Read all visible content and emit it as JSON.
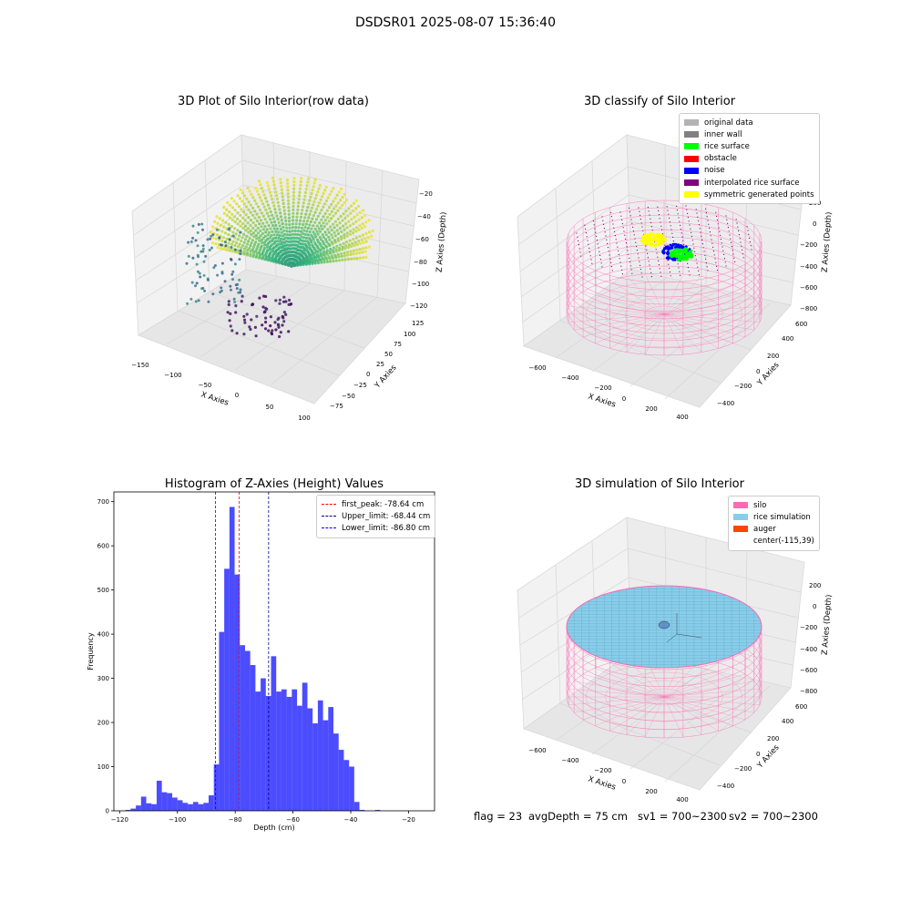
{
  "figure": {
    "suptitle": "DSDSR01 2025-08-07 15:36:40"
  },
  "panel1": {
    "title": "3D Plot of Silo Interior(row data)",
    "xlabel": "X Axies",
    "ylabel": "Y Axies",
    "zlabel": "Z Axies (Depth)",
    "x_ticks": [
      "−150",
      "−100",
      "−50",
      "0",
      "50",
      "100"
    ],
    "y_ticks": [
      "−75",
      "−50",
      "−25",
      "0",
      "25",
      "50",
      "75",
      "100",
      "125"
    ],
    "z_ticks": [
      "−120",
      "−100",
      "−80",
      "−60",
      "−40",
      "−20"
    ],
    "colormap": [
      "#440154",
      "#31688e",
      "#35b779",
      "#fde725"
    ]
  },
  "panel2": {
    "title": "3D classify of Silo Interior",
    "xlabel": "X Axies",
    "ylabel": "Y Axies",
    "zlabel": "Z Axies (Depth)",
    "x_ticks": [
      "−600",
      "−400",
      "−200",
      "0",
      "200",
      "400"
    ],
    "y_ticks": [
      "−400",
      "−200",
      "0",
      "200",
      "400",
      "600"
    ],
    "z_ticks": [
      "−800",
      "−600",
      "−400",
      "−200",
      "0",
      "200"
    ],
    "legend": [
      {
        "label": "original data",
        "color": "#b3b3b3"
      },
      {
        "label": "inner wall",
        "color": "#808080"
      },
      {
        "label": "rice surface",
        "color": "#00ff00"
      },
      {
        "label": "obstacle",
        "color": "#ff0000"
      },
      {
        "label": "noise",
        "color": "#0000ff"
      },
      {
        "label": "interpolated rice surface",
        "color": "#800080"
      },
      {
        "label": "symmetric generated points",
        "color": "#ffff00"
      }
    ],
    "wall_color": "#ff69b4"
  },
  "panel4": {
    "title": "3D simulation of Silo Interior",
    "xlabel": "X Axies",
    "ylabel": "Y Axies",
    "zlabel": "Z Axies (Depth)",
    "x_ticks": [
      "−600",
      "−400",
      "−200",
      "0",
      "200",
      "400"
    ],
    "y_ticks": [
      "−400",
      "−200",
      "0",
      "200",
      "400",
      "600"
    ],
    "z_ticks": [
      "−800",
      "−600",
      "−400",
      "−200",
      "0",
      "200"
    ],
    "legend": [
      {
        "label": "silo",
        "color": "#ff69b4"
      },
      {
        "label": "rice simulation",
        "color": "#87ceeb"
      },
      {
        "label": "auger",
        "color": "#ff4500"
      },
      {
        "label": "center(-115,39)",
        "color": ""
      }
    ]
  },
  "footer": {
    "flag": "flag = 23",
    "avg": "avgDepth = 75 cm",
    "sv1": "sv1 = 700~2300",
    "sv2": "sv2 = 700~2300"
  },
  "chart_data": [
    {
      "type": "bar",
      "title": "Histogram of Z-Axies (Height) Values",
      "xlabel": "Depth (cm)",
      "ylabel": "Frequency",
      "xlim": [
        -122,
        -11
      ],
      "ylim": [
        0,
        722
      ],
      "x_ticks": [
        -120,
        -100,
        -80,
        -60,
        -40,
        -20
      ],
      "x_tick_labels": [
        "−120",
        "−100",
        "−80",
        "−60",
        "−40",
        "−20"
      ],
      "y_ticks": [
        0,
        100,
        200,
        300,
        400,
        500,
        600,
        700
      ],
      "bar_color": "#0000ff",
      "bins_start": -118,
      "bin_width": 1.8,
      "values": [
        2,
        5,
        12,
        32,
        17,
        15,
        68,
        42,
        40,
        30,
        24,
        18,
        15,
        20,
        15,
        18,
        35,
        105,
        405,
        548,
        688,
        535,
        375,
        362,
        330,
        270,
        300,
        260,
        350,
        270,
        275,
        258,
        275,
        238,
        290,
        232,
        198,
        250,
        205,
        235,
        175,
        138,
        115,
        100,
        20,
        2,
        0,
        0,
        2,
        0
      ],
      "lines": [
        {
          "label": "first_peak: -78.64 cm",
          "x": -78.64,
          "color": "#ff0000"
        },
        {
          "label": "Upper_limit: -68.44 cm",
          "x": -68.44,
          "color": "#00008b"
        },
        {
          "label": "Lower_limit: -86.80 cm",
          "x": -86.8,
          "color": "#0000ff"
        }
      ],
      "legend_position": "top-right"
    }
  ]
}
